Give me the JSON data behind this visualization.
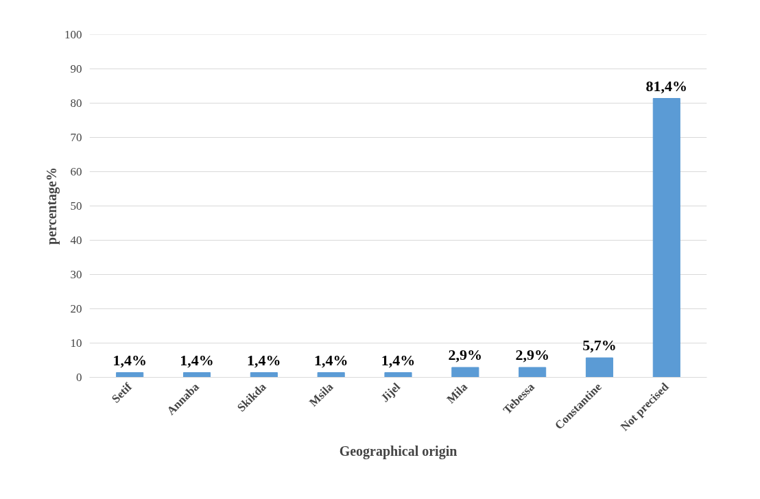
{
  "chart_data": {
    "type": "bar",
    "xlabel": "Geographical origin",
    "ylabel": "percentage%",
    "categories": [
      "Setif",
      "Annaba",
      "Skikda",
      "Msila",
      "Jijel",
      "Mila",
      "Tebessa",
      "Constantine",
      "Not precised"
    ],
    "values": [
      1.4,
      1.4,
      1.4,
      1.4,
      1.4,
      2.9,
      2.9,
      5.7,
      81.4
    ],
    "value_labels": [
      "1,4%",
      "1,4%",
      "1,4%",
      "1,4%",
      "1,4%",
      "2,9%",
      "2,9%",
      "5,7%",
      "81,4%"
    ],
    "color": "#5b9bd5",
    "ylim": [
      0,
      100
    ],
    "yticks": [
      0,
      10,
      20,
      30,
      40,
      50,
      60,
      70,
      80,
      90,
      100
    ],
    "grid": "y"
  }
}
